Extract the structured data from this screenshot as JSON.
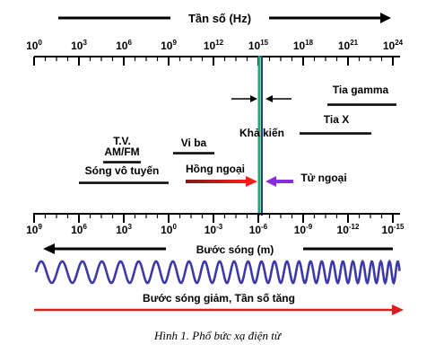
{
  "frequency_axis": {
    "title": "Tần số (Hz)",
    "ticks": [
      {
        "base": "10",
        "exp": "0"
      },
      {
        "base": "10",
        "exp": "3"
      },
      {
        "base": "10",
        "exp": "6"
      },
      {
        "base": "10",
        "exp": "9"
      },
      {
        "base": "10",
        "exp": "12"
      },
      {
        "base": "10",
        "exp": "15"
      },
      {
        "base": "10",
        "exp": "18"
      },
      {
        "base": "10",
        "exp": "21"
      },
      {
        "base": "10",
        "exp": "24"
      }
    ]
  },
  "wavelength_axis": {
    "title": "Bước sóng (m)",
    "ticks": [
      {
        "base": "10",
        "exp": "9"
      },
      {
        "base": "10",
        "exp": "6"
      },
      {
        "base": "10",
        "exp": "3"
      },
      {
        "base": "10",
        "exp": "0"
      },
      {
        "base": "10",
        "exp": "-3"
      },
      {
        "base": "10",
        "exp": "-6"
      },
      {
        "base": "10",
        "exp": "-9"
      },
      {
        "base": "10",
        "exp": "-12"
      },
      {
        "base": "10",
        "exp": "-15"
      }
    ]
  },
  "bands": {
    "gamma": "Tia gamma",
    "xray": "Tia X",
    "visible": "Khả kiến",
    "tv": "T.V.",
    "amfm": "AM/FM",
    "microwave": "Vi ba",
    "radio": "Sóng vô tuyến",
    "infrared": "Hồng ngoại",
    "ultraviolet": "Tử ngoại"
  },
  "bottom_label": "Bước sóng giảm, Tần số tăng",
  "caption": "Hình 1. Phổ bức xạ điện từ",
  "colors": {
    "axis": "#000000",
    "visible_line_green": "#2ea37a",
    "visible_line_blue": "#1a3f8f",
    "infrared_arrow": "#e11b1b",
    "ultraviolet_arrow": "#8a2be2",
    "wave": "#3d3aa8",
    "bottom_arrow": "#d81e1e"
  }
}
